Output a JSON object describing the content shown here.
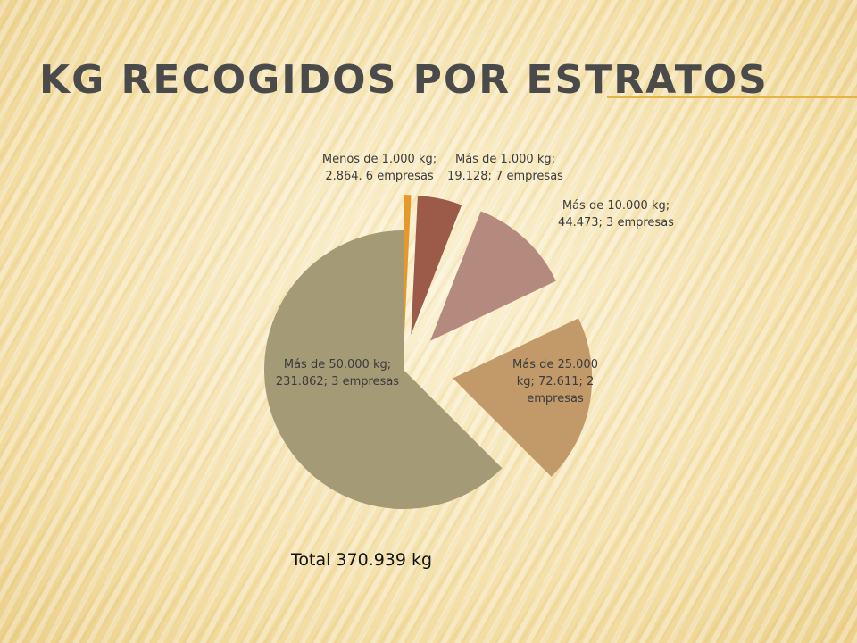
{
  "slide": {
    "title": "Kg recogidos por estratos",
    "total_text": "Total 370.939 kg"
  },
  "colors": {
    "slices": [
      "#e39a2a",
      "#9c5a48",
      "#b48a7e",
      "#c29a6a",
      "#a49a75"
    ]
  },
  "chart_data": {
    "type": "pie",
    "title": "",
    "exploded": true,
    "slices": [
      {
        "category": "Menos de 1.000 kg",
        "value": 2864,
        "label_lines": [
          "Menos de 1.000 kg;",
          "2.864. 6 empresas"
        ]
      },
      {
        "category": "Más de 1.000 kg",
        "value": 19128,
        "label_lines": [
          "Más de 1.000 kg;",
          "19.128; 7 empresas"
        ]
      },
      {
        "category": "Más de 10.000 kg",
        "value": 44473,
        "label_lines": [
          "Más de 10.000 kg;",
          "44.473; 3 empresas"
        ]
      },
      {
        "category": "Más de 25.000 kg",
        "value": 72611,
        "label_lines": [
          "Más de 25.000",
          "kg; 72.611; 2",
          "empresas"
        ]
      },
      {
        "category": "Más de 50.000 kg",
        "value": 231862,
        "label_lines": [
          "Más de 50.000 kg;",
          "231.862; 3 empresas"
        ]
      }
    ]
  }
}
